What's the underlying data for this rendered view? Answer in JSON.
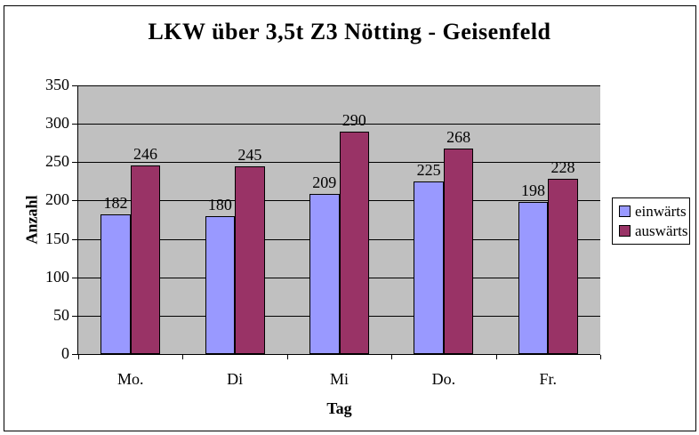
{
  "chart_data": {
    "type": "bar",
    "title": "LKW über 3,5t Z3 Nötting - Geisenfeld",
    "xlabel": "Tag",
    "ylabel": "Anzahl",
    "categories": [
      "Mo.",
      "Di",
      "Mi",
      "Do.",
      "Fr."
    ],
    "series": [
      {
        "name": "einwärts",
        "color": "#9999FF",
        "values": [
          182,
          180,
          209,
          225,
          198
        ]
      },
      {
        "name": "auswärts",
        "color": "#993366",
        "values": [
          246,
          245,
          290,
          268,
          228
        ]
      }
    ],
    "ylim": [
      0,
      350
    ],
    "ytick_step": 50,
    "grid": true,
    "data_labels": true,
    "legend_position": "right",
    "colors": {
      "plot_bg": "#C0C0C0",
      "chart_bg": "#FFFFFF",
      "line": "#000000"
    }
  }
}
